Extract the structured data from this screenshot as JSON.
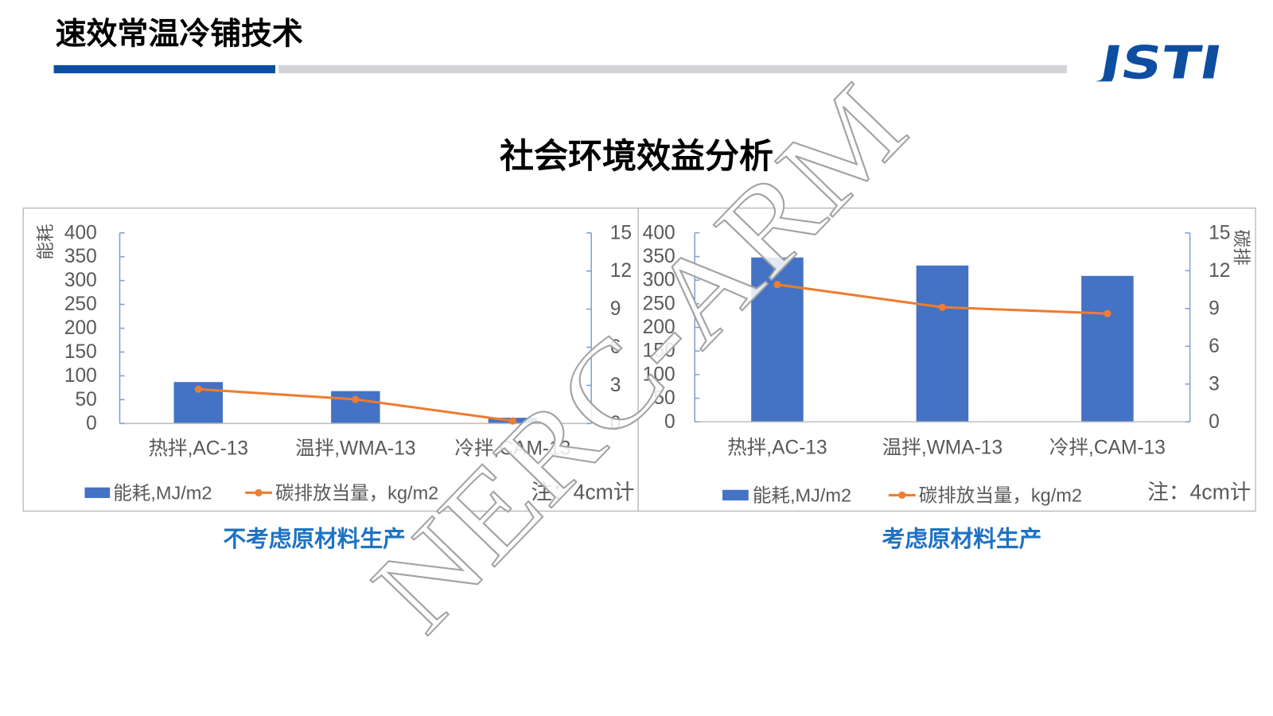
{
  "slide": {
    "title": "速效常温冷铺技术",
    "heading": "社会环境效益分析",
    "logo_text": "JSTI",
    "watermark": "NERC-ARM",
    "colors": {
      "brand_blue": "#0d4ea1",
      "rule_gray": "#d3d3d8",
      "caption_blue": "#1e72c3"
    }
  },
  "chart_data": [
    {
      "type": "bar",
      "caption": "不考虑原材料生产",
      "categories": [
        "热拌,AC-13",
        "温拌,WMA-13",
        "冷拌,CAM-13"
      ],
      "series": [
        {
          "name": "能耗,MJ/m2",
          "type": "bar",
          "axis": "left",
          "color": "#4472c4",
          "values": [
            87,
            68,
            12
          ]
        },
        {
          "name": "碳排放当量，kg/m2",
          "type": "line",
          "axis": "right",
          "color": "#ed7d31",
          "values": [
            2.7,
            1.9,
            0.2
          ]
        }
      ],
      "ylabel": "能耗",
      "ylim": [
        0,
        400
      ],
      "yticks": [
        0,
        50,
        100,
        150,
        200,
        250,
        300,
        350,
        400
      ],
      "ylim_right": [
        0,
        15
      ],
      "yticks_right": [
        0,
        3,
        6,
        9,
        12,
        15
      ],
      "note": "注：4cm计",
      "legend": "bottom",
      "grid": false
    },
    {
      "type": "bar",
      "caption": "考虑原材料生产",
      "categories": [
        "热拌,AC-13",
        "温拌,WMA-13",
        "冷拌,CAM-13"
      ],
      "series": [
        {
          "name": "能耗,MJ/m2",
          "type": "bar",
          "axis": "left",
          "color": "#4472c4",
          "values": [
            348,
            331,
            309
          ]
        },
        {
          "name": "碳排放当量，kg/m2",
          "type": "line",
          "axis": "right",
          "color": "#ed7d31",
          "values": [
            10.9,
            9.1,
            8.6
          ]
        }
      ],
      "ylabel_right": "碳排",
      "ylim": [
        0,
        400
      ],
      "yticks": [
        0,
        50,
        100,
        150,
        200,
        250,
        300,
        350,
        400
      ],
      "ylim_right": [
        0,
        15
      ],
      "yticks_right": [
        0,
        3,
        6,
        9,
        12,
        15
      ],
      "note": "注：4cm计",
      "legend": "bottom",
      "grid": false
    }
  ]
}
